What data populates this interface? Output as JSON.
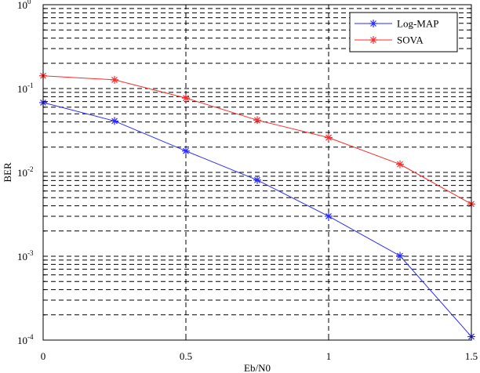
{
  "chart_data": {
    "type": "line",
    "title": "",
    "xlabel": "Eb/N0",
    "ylabel": "BER",
    "xlim": [
      0,
      1.5
    ],
    "ylim": [
      0.0001,
      1
    ],
    "yscale": "log",
    "grid": true,
    "legend_position": "top-right",
    "x_ticks": [
      {
        "value": 0,
        "label": "0"
      },
      {
        "value": 0.5,
        "label": "0.5"
      },
      {
        "value": 1,
        "label": "1"
      },
      {
        "value": 1.5,
        "label": "1.5"
      }
    ],
    "y_ticks": [
      {
        "value": 0.0001,
        "base": "10",
        "exp": "-4"
      },
      {
        "value": 0.001,
        "base": "10",
        "exp": "-3"
      },
      {
        "value": 0.01,
        "base": "10",
        "exp": "-2"
      },
      {
        "value": 0.1,
        "base": "10",
        "exp": "-1"
      },
      {
        "value": 1,
        "base": "10",
        "exp": "0"
      }
    ],
    "x": [
      0,
      0.25,
      0.5,
      0.75,
      1,
      1.25,
      1.5
    ],
    "series": [
      {
        "name": "Log-MAP",
        "color": "#2b2bff",
        "marker": "star",
        "values": [
          0.068,
          0.041,
          0.018,
          0.0081,
          0.003,
          0.00101,
          0.00011
        ]
      },
      {
        "name": "SOVA",
        "color": "#ff2b2b",
        "marker": "star",
        "values": [
          0.142,
          0.127,
          0.077,
          0.042,
          0.026,
          0.0125,
          0.0042
        ]
      }
    ]
  }
}
